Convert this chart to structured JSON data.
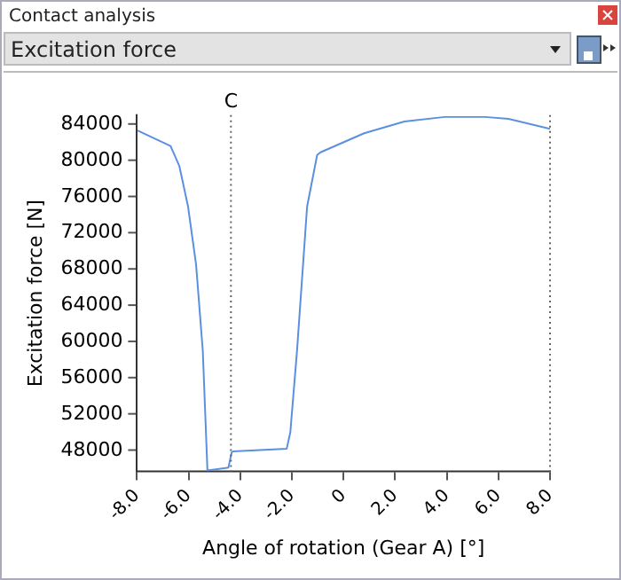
{
  "chart_data": {
    "type": "line",
    "title": "Excitation force",
    "annotations": [
      "Contact analysis"
    ],
    "xlabel": "Angle of rotation (Gear A) [°]",
    "ylabel": "Excitation force [N]",
    "x": [
      -7.98,
      -6.7,
      -6.36,
      -6.02,
      -5.71,
      -5.45,
      -5.27,
      -4.46,
      -4.33,
      -4.28,
      -2.2,
      -2.06,
      -1.8,
      -1.41,
      -1.02,
      -0.89,
      0.8,
      2.36,
      3.92,
      5.48,
      6.39,
      8.0
    ],
    "series": [
      {
        "color": "#5b8fdf",
        "values": [
          83300,
          81600,
          79400,
          74900,
          68500,
          59000,
          45800,
          46100,
          47800,
          47900,
          48200,
          50000,
          59000,
          74900,
          80600,
          80900,
          83000,
          84300,
          84800,
          84800,
          84600,
          83500
        ]
      }
    ],
    "xlim": [
      -8,
      8
    ],
    "xticks": [
      {
        "value": -8,
        "label": "-8.0"
      },
      {
        "value": -6,
        "label": "-6.0"
      },
      {
        "value": -4,
        "label": "-4.0"
      },
      {
        "value": -2,
        "label": "-2.0"
      },
      0,
      {
        "value": 2,
        "label": "2.0"
      },
      {
        "value": 4,
        "label": "4.0"
      },
      {
        "value": 6,
        "label": "6.0"
      },
      {
        "value": 8,
        "label": "8.0"
      }
    ],
    "ylim": [
      45700,
      85000
    ],
    "yticks": [
      48000,
      52000,
      56000,
      60000,
      64000,
      68000,
      72000,
      76000,
      80000,
      84000
    ],
    "ref_lines": [
      {
        "axis": "x",
        "value": -4.36,
        "label": "C",
        "line_style": "dotted"
      },
      {
        "axis": "x",
        "value": 8,
        "line_style": "dotted"
      }
    ],
    "grid": false,
    "legend": false,
    "marker": "none",
    "line_style": "solid"
  }
}
